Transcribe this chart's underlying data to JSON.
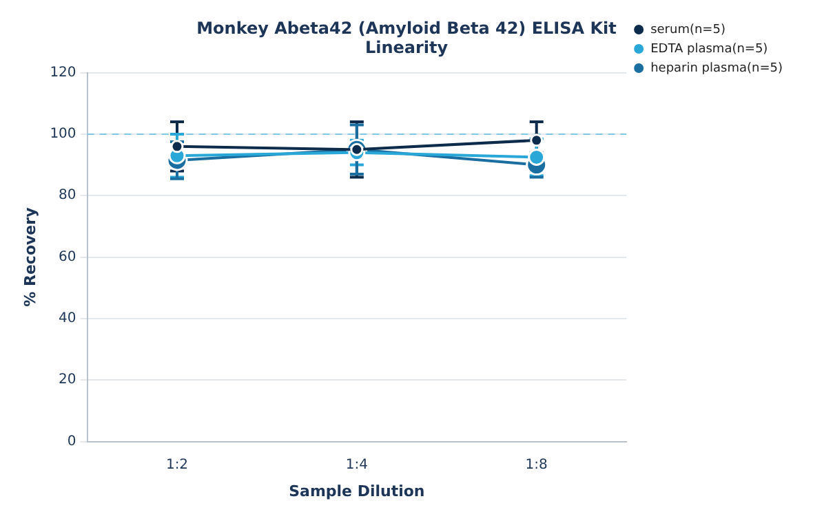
{
  "chart_data": {
    "type": "line",
    "title": "Monkey Abeta42 (Amyloid Beta 42) ELISA Kit",
    "subtitle": "Linearity",
    "xlabel": "Sample Dilution",
    "ylabel": "% Recovery",
    "categories": [
      "1:2",
      "1:4",
      "1:8"
    ],
    "series": [
      {
        "name": "serum(n=5)",
        "color": "#0d2b4a",
        "values": [
          96,
          95,
          98
        ],
        "errors": [
          8,
          9,
          6
        ]
      },
      {
        "name": "EDTA plasma(n=5)",
        "color": "#29a8d8",
        "values": [
          93,
          94,
          92.5
        ],
        "errors": [
          7,
          4,
          6
        ]
      },
      {
        "name": "heparin plasma(n=5)",
        "color": "#1a6fa0",
        "values": [
          91.5,
          95,
          90
        ],
        "errors": [
          6,
          8,
          4
        ]
      }
    ],
    "ylim": [
      0,
      120
    ],
    "yticks": [
      0,
      20,
      40,
      60,
      80,
      100,
      120
    ],
    "grid": "y",
    "legend": "top right",
    "marker": "circle",
    "line_style": "solid",
    "ref_lines": [
      {
        "axis": "y",
        "value": 100,
        "color": "#7ec8e3",
        "line_style": "dashed"
      }
    ]
  }
}
